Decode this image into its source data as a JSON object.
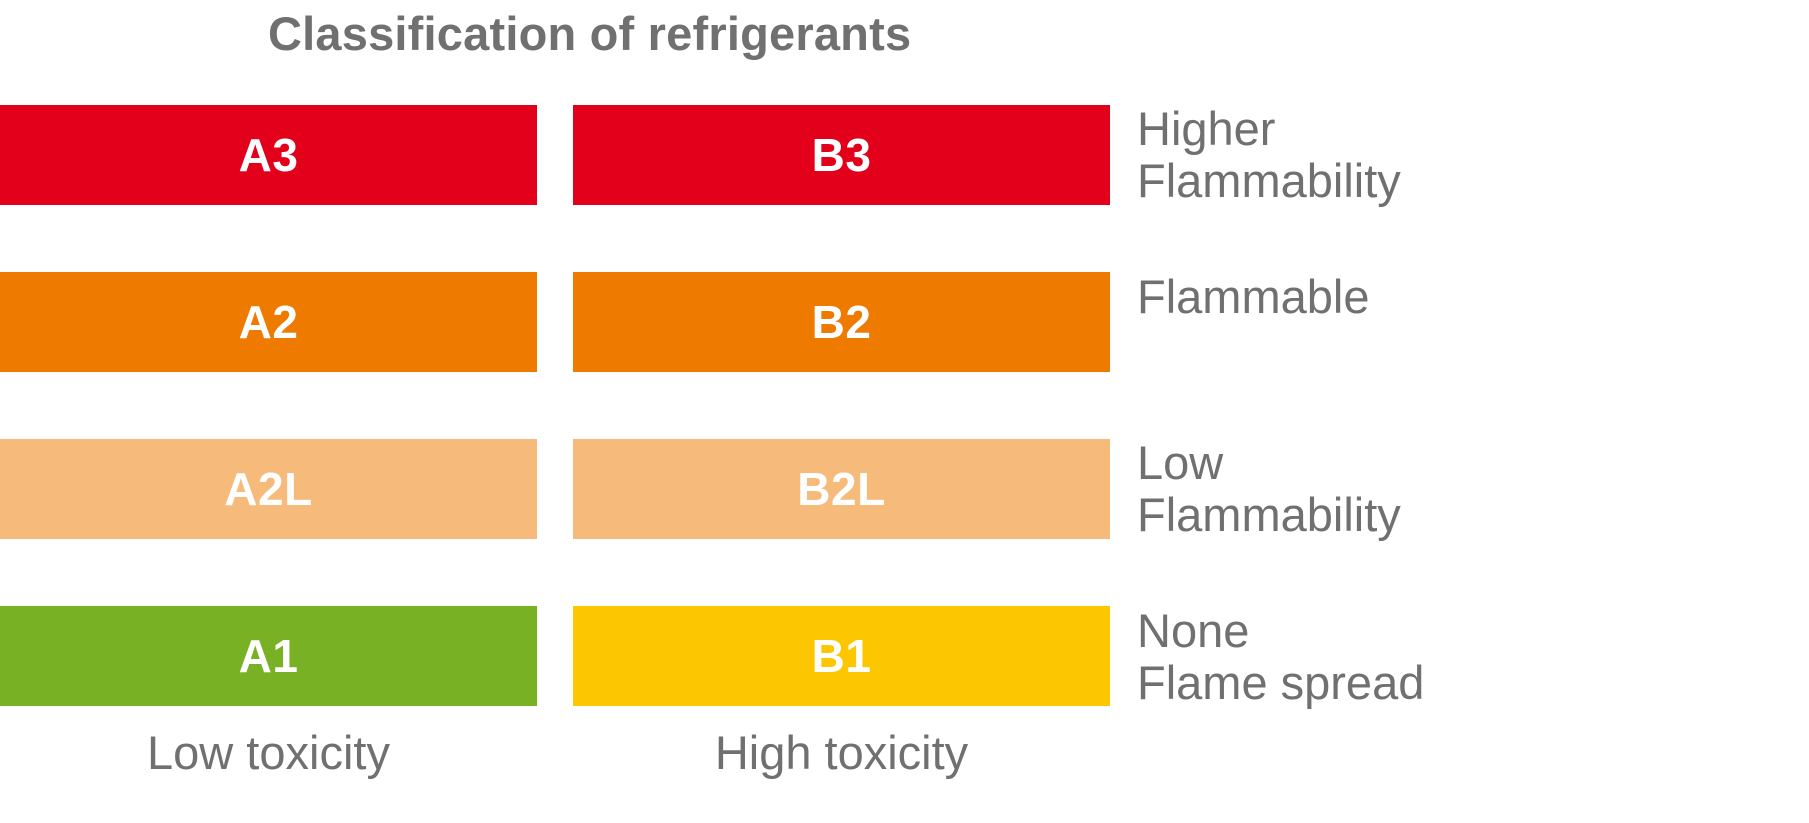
{
  "title": "Classification of refrigerants",
  "colors": {
    "higher_flammability": "#E2001A",
    "flammable": "#EE7A00",
    "low_flammability": "#F6BB7A",
    "none_low_toxicity": "#78B123",
    "none_high_toxicity": "#FCC700",
    "cell_text": "#FFFFFF",
    "label_text": "#707070"
  },
  "cells": {
    "a3": "A3",
    "b3": "B3",
    "a2": "A2",
    "b2": "B2",
    "a2l": "A2L",
    "b2l": "B2L",
    "a1": "A1",
    "b1": "B1"
  },
  "flammability_labels": {
    "higher": [
      "Higher",
      "Flammability"
    ],
    "flammable": [
      "Flammable"
    ],
    "low": [
      "Low",
      "Flammability"
    ],
    "none": [
      "None",
      "Flame spread"
    ]
  },
  "toxicity_labels": {
    "low": "Low toxicity",
    "high": "High toxicity"
  }
}
